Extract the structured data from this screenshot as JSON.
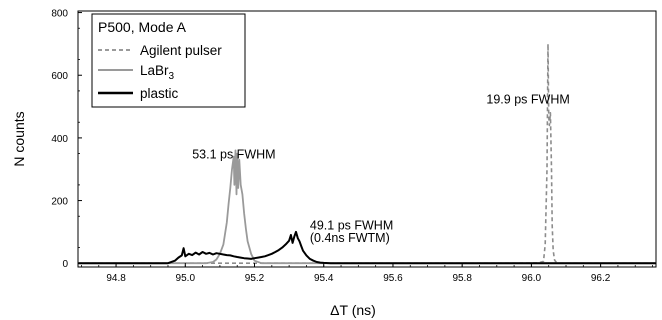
{
  "chart_data": {
    "type": "line",
    "xlabel": "ΔT (ns)",
    "ylabel": "N counts",
    "xlim": [
      94.69,
      96.36
    ],
    "ylim": [
      -12,
      805
    ],
    "x_ticks": [
      94.8,
      95.0,
      95.2,
      95.4,
      95.6,
      95.8,
      96.0,
      96.2
    ],
    "x_tick_labels": [
      "94.8",
      "95.0",
      "95.2",
      "95.4",
      "95.6",
      "95.8",
      "96.0",
      "96.2"
    ],
    "y_ticks": [
      0,
      200,
      400,
      600,
      800
    ],
    "y_tick_labels": [
      "0",
      "200",
      "400",
      "600",
      "800"
    ],
    "grid": false,
    "legend": {
      "title": "P500, Mode A",
      "position": "top-left",
      "entries": [
        {
          "label": "Agilent pulser",
          "sub": "",
          "style": "dashed",
          "color": "#8c8c8c"
        },
        {
          "label": "LaBr",
          "sub": "3",
          "style": "solid",
          "color": "#9a9a9a"
        },
        {
          "label": "plastic",
          "sub": "",
          "style": "solid-thick",
          "color": "#000000"
        }
      ]
    },
    "annotations": [
      {
        "text": "19.9 ps FWHM",
        "x": 95.87,
        "y": 510
      },
      {
        "text": "53.1 ps FWHM",
        "x": 95.02,
        "y": 335
      },
      {
        "text": "49.1 ps FWHM",
        "x": 95.36,
        "y": 108
      },
      {
        "text": "(0.4ns FWTM)",
        "x": 95.36,
        "y": 67
      }
    ],
    "series": [
      {
        "name": "Agilent pulser",
        "color": "#8c8c8c",
        "dash": "4,3",
        "width": 1.6,
        "x": [
          94.69,
          95.95,
          96.02,
          96.035,
          96.04,
          96.045,
          96.048,
          96.05,
          96.052,
          96.055,
          96.058,
          96.06,
          96.063,
          96.067,
          96.072,
          96.08,
          96.36
        ],
        "y": [
          0,
          0,
          1,
          6,
          60,
          300,
          700,
          470,
          440,
          480,
          300,
          120,
          40,
          10,
          3,
          0,
          0
        ]
      },
      {
        "name": "LaBr3",
        "color": "#9a9a9a",
        "dash": "",
        "width": 1.8,
        "x": [
          94.69,
          95.06,
          95.08,
          95.09,
          95.1,
          95.11,
          95.12,
          95.125,
          95.13,
          95.135,
          95.14,
          95.142,
          95.145,
          95.148,
          95.15,
          95.153,
          95.156,
          95.16,
          95.165,
          95.17,
          95.175,
          95.18,
          95.19,
          95.2,
          95.22,
          96.36
        ],
        "y": [
          0,
          0,
          4,
          12,
          30,
          60,
          130,
          190,
          240,
          300,
          340,
          250,
          360,
          220,
          350,
          240,
          330,
          250,
          220,
          160,
          110,
          70,
          30,
          8,
          0,
          0
        ]
      },
      {
        "name": "plastic",
        "color": "#000000",
        "dash": "",
        "width": 2.0,
        "x": [
          94.69,
          94.95,
          94.97,
          94.98,
          94.99,
          94.995,
          95.0,
          95.01,
          95.02,
          95.03,
          95.04,
          95.05,
          95.06,
          95.07,
          95.08,
          95.09,
          95.1,
          95.11,
          95.12,
          95.13,
          95.14,
          95.15,
          95.16,
          95.17,
          95.18,
          95.19,
          95.2,
          95.21,
          95.22,
          95.23,
          95.24,
          95.25,
          95.26,
          95.27,
          95.28,
          95.29,
          95.3,
          95.305,
          95.31,
          95.315,
          95.32,
          95.325,
          95.33,
          95.335,
          95.34,
          95.35,
          95.36,
          95.37,
          95.38,
          95.39,
          95.4,
          95.42,
          96.36
        ],
        "y": [
          0,
          0,
          8,
          18,
          25,
          48,
          22,
          30,
          26,
          34,
          28,
          36,
          30,
          33,
          28,
          32,
          30,
          28,
          26,
          25,
          22,
          20,
          18,
          16,
          15,
          14,
          16,
          18,
          20,
          22,
          26,
          30,
          36,
          42,
          50,
          60,
          72,
          90,
          65,
          85,
          100,
          80,
          70,
          55,
          40,
          25,
          14,
          8,
          4,
          2,
          1,
          0,
          0
        ]
      }
    ]
  }
}
